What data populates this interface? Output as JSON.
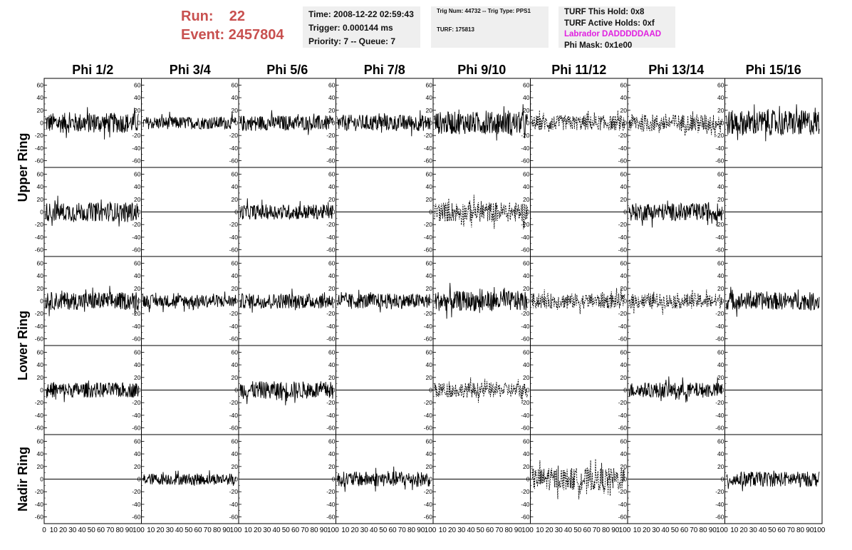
{
  "header": {
    "run_label": "Run:",
    "run_value": "22",
    "event_label": "Event:",
    "event_value": "2457804",
    "time": "Time: 2008-12-22 02:59:43",
    "trigger": "Trigger: 0.000144 ms",
    "priority": "Priority: 7 -- Queue: 7",
    "trig_num": "Trig Num: 44732 -- Trig Type: PPS1",
    "turf": "TURF: 175813",
    "turf_this_hold": "TURF This Hold: 0x8",
    "turf_active_holds": "TURF Active Holds: 0xf",
    "labrador": "Labrador DADDDDDAAD",
    "phi_mask": "Phi Mask: 0x1e00",
    "colors": {
      "run_text": "#c8504f",
      "labrador_text": "#e020e0",
      "box_bg": "#efefef"
    }
  },
  "chart_data": {
    "type": "line",
    "columns": [
      "Phi 1/2",
      "Phi 3/4",
      "Phi 5/6",
      "Phi 7/8",
      "Phi 9/10",
      "Phi 11/12",
      "Phi 13/14",
      "Phi 15/16"
    ],
    "ring_labels": [
      "Upper Ring",
      "Lower Ring",
      "Nadir Ring"
    ],
    "y_ticks": [
      "60",
      "40",
      "20",
      "0",
      "-20",
      "-40",
      "-60"
    ],
    "x_ticks": [
      "0",
      "10",
      "20",
      "30",
      "40",
      "50",
      "60",
      "70",
      "80",
      "90",
      "100"
    ],
    "ylim": [
      -65,
      65
    ],
    "xlim": [
      0,
      100
    ],
    "rows": [
      {
        "styles": [
          "solid",
          "solid",
          "solid",
          "solid",
          "solid",
          "dashed",
          "dashed",
          "solid"
        ],
        "amps": [
          16,
          10,
          12,
          13,
          18,
          12,
          14,
          20
        ]
      },
      {
        "styles": [
          "solid",
          "flat",
          "solid",
          "flat",
          "dashed",
          "flat",
          "solid",
          "flat"
        ],
        "amps": [
          15,
          0,
          12,
          0,
          16,
          0,
          14,
          0
        ]
      },
      {
        "styles": [
          "solid",
          "solid",
          "solid",
          "solid",
          "solid",
          "dashed",
          "dashed",
          "solid"
        ],
        "amps": [
          14,
          10,
          12,
          12,
          16,
          12,
          12,
          14
        ]
      },
      {
        "styles": [
          "solid",
          "flat",
          "solid",
          "flat",
          "dashed",
          "flat",
          "solid",
          "flat"
        ],
        "amps": [
          12,
          0,
          14,
          0,
          12,
          0,
          12,
          0
        ]
      },
      {
        "styles": [
          "flat",
          "solid",
          "flat",
          "solid",
          "flat",
          "dashed",
          "flat",
          "solid"
        ],
        "amps": [
          0,
          9,
          0,
          12,
          0,
          18,
          0,
          12
        ]
      }
    ]
  }
}
